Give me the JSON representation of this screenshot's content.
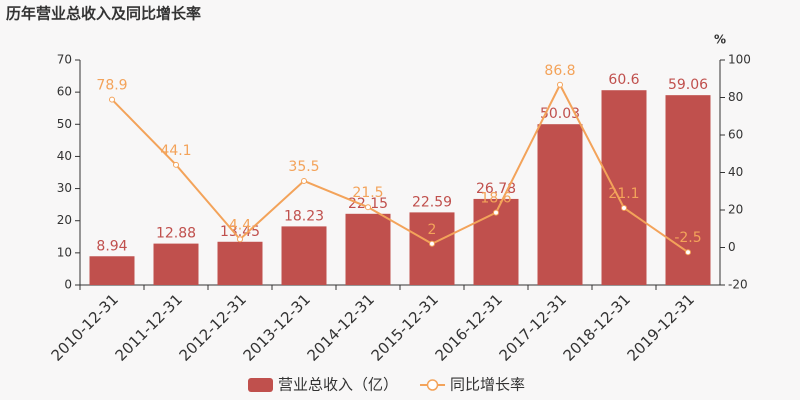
{
  "chart_data": {
    "type": "bar",
    "title": "历年营业总收入及同比增长率",
    "y2label": "%",
    "categories": [
      "2010-12-31",
      "2011-12-31",
      "2012-12-31",
      "2013-12-31",
      "2014-12-31",
      "2015-12-31",
      "2016-12-31",
      "2017-12-31",
      "2018-12-31",
      "2019-12-31"
    ],
    "series": [
      {
        "name": "营业总收入（亿）",
        "type": "bar",
        "color": "#c0504d",
        "values": [
          8.94,
          12.88,
          13.45,
          18.23,
          22.15,
          22.59,
          26.78,
          50.03,
          60.6,
          59.06
        ]
      },
      {
        "name": "同比增长率",
        "type": "line",
        "axis": "y2",
        "color": "#f3a35a",
        "values": [
          78.9,
          44.1,
          4.4,
          35.5,
          21.5,
          2,
          18.6,
          86.8,
          21.1,
          -2.5
        ]
      }
    ],
    "ylim": [
      0,
      70
    ],
    "yticks": [
      0,
      10,
      20,
      30,
      40,
      50,
      60,
      70
    ],
    "y2lim": [
      -20,
      100
    ],
    "y2ticks": [
      -20,
      0,
      20,
      40,
      60,
      80,
      100
    ],
    "grid": false,
    "legend": "bottom"
  }
}
